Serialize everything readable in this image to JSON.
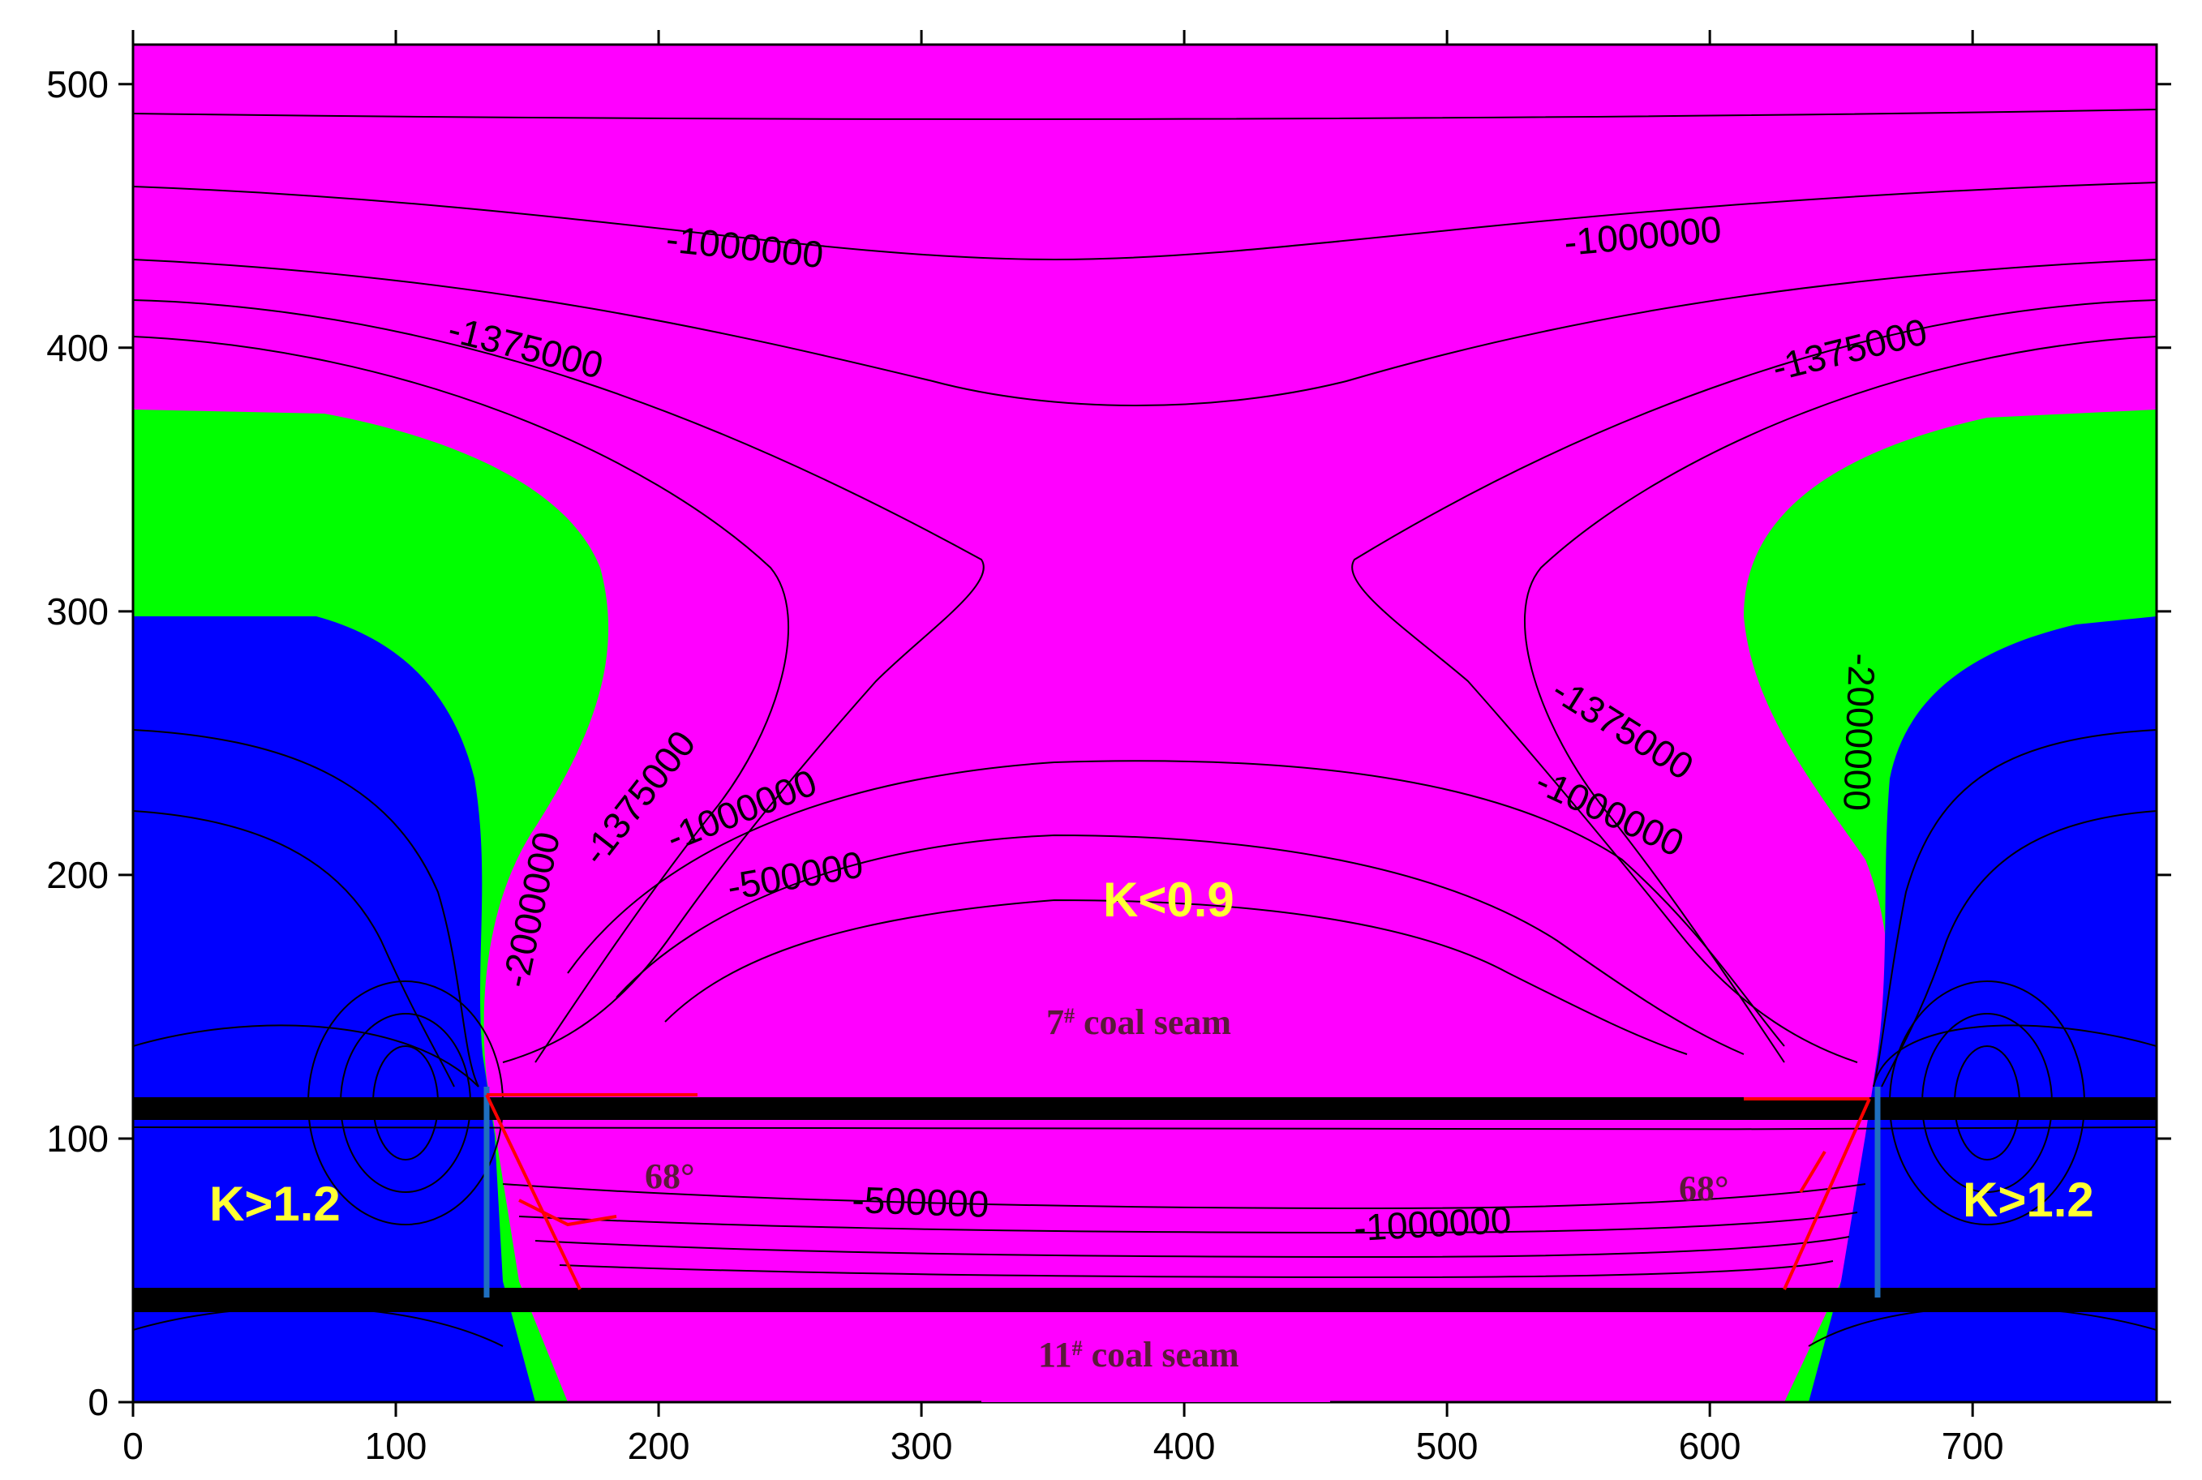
{
  "chart_data": {
    "type": "heatmap",
    "title": "",
    "xlabel": "",
    "ylabel": "",
    "xlim": [
      0,
      770
    ],
    "ylim": [
      0,
      515
    ],
    "x_ticks": [
      0,
      100,
      200,
      300,
      400,
      500,
      600,
      700
    ],
    "y_ticks": [
      0,
      100,
      200,
      300,
      400,
      500
    ],
    "colors": {
      "pink": "#ff00ff",
      "green": "#00ff00",
      "blue": "#0000ff",
      "seam": "#000000",
      "fracture": "#ff0000",
      "edge": "#1f6fbf",
      "label": "#ffff33"
    },
    "zone_labels": [
      "K<0.9",
      "K>1.2",
      "K>1.2"
    ],
    "seam_labels": [
      "7",
      "#",
      " coal seam",
      "11",
      "#",
      " coal seam"
    ],
    "angle_labels": [
      "68°",
      "68°"
    ],
    "contour_labels": [
      "-1000000",
      "-1000000",
      "-1375000",
      "-1375000",
      "-1375000",
      "-1375000",
      "-1000000",
      "-1000000",
      "-500000",
      "-2000000",
      "-2000000",
      "-500000",
      "-1000000"
    ]
  }
}
